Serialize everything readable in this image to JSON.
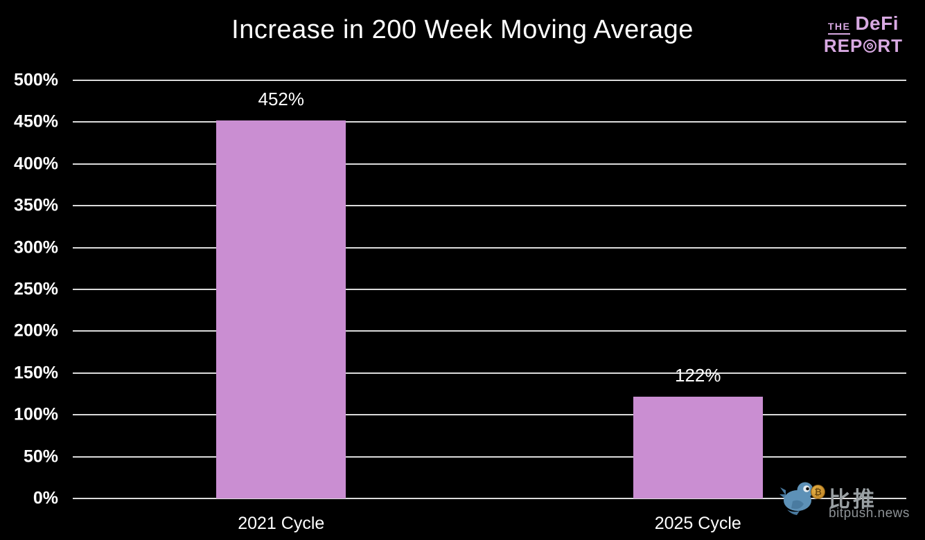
{
  "title": "Increase in 200 Week Moving Average",
  "logo": {
    "the": "THE",
    "defi": "DeFi",
    "report_left": "REP",
    "report_right": "RT",
    "color": "#d8a9e2"
  },
  "watermark": {
    "cjk": "比推",
    "site": "bitpush.news",
    "coin_symbol": "₿",
    "text_color": "#9aa0a3"
  },
  "colors": {
    "background": "#000000",
    "bar": "#ca8ed2",
    "gridline": "#dcdcdc",
    "text": "#ffffff"
  },
  "chart_data": {
    "type": "bar",
    "title": "Increase in 200 Week Moving Average",
    "categories": [
      "2021 Cycle",
      "2025 Cycle"
    ],
    "values": [
      452,
      122
    ],
    "data_labels": [
      "452%",
      "122%"
    ],
    "xlabel": "",
    "ylabel": "",
    "ylim": [
      0,
      500
    ],
    "ytick_values": [
      0,
      50,
      100,
      150,
      200,
      250,
      300,
      350,
      400,
      450,
      500
    ],
    "ytick_labels": [
      "0%",
      "50%",
      "100%",
      "150%",
      "200%",
      "250%",
      "300%",
      "350%",
      "400%",
      "450%",
      "500%"
    ],
    "grid": true,
    "legend": false,
    "background": "black"
  }
}
